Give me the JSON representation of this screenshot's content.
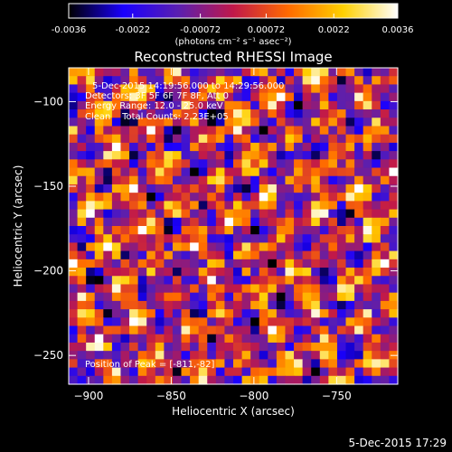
{
  "chart_data": {
    "type": "heatmap",
    "title": "Reconstructed RHESSI Image",
    "xlabel": "Heliocentric X (arcsec)",
    "ylabel": "Heliocentric Y (arcsec)",
    "xlim": [
      -912,
      -713
    ],
    "ylim": [
      -267,
      -80
    ],
    "x_ticks": [
      -900,
      -850,
      -800,
      -750
    ],
    "y_ticks": [
      -250,
      -200,
      -150,
      -100
    ],
    "grid": false,
    "colorbar": {
      "range": [
        -0.0036,
        0.0036
      ],
      "tick_values": [
        -0.0036,
        -0.0022,
        -0.00072,
        0.00072,
        0.0022,
        0.0036
      ],
      "tick_labels": [
        "-0.0036",
        "-0.0022",
        "-0.00072",
        "0.00072",
        "0.0022",
        "0.0036"
      ],
      "unit_label": "(photons cm⁻² s⁻¹ asec⁻²)",
      "colormap": [
        "#000000",
        "#1a00ff",
        "#5a1fb0",
        "#c0184a",
        "#ff6a00",
        "#ffd000",
        "#ffffff"
      ]
    },
    "grid_size": [
      38,
      38
    ],
    "annotations": {
      "time_range": "5-Dec-2015 14:19:56.000 to 14:29:56.000",
      "detectors": "Detectors: 3F 5F 6F 7F 8F, Att 0",
      "energy": "Energy Range: 12.0 - 25.0 keV",
      "clean": "Clean    Total Counts: 2.23E+05",
      "peak": "Position of Peak = [-811,-82]"
    }
  },
  "footer": {
    "timestamp": "5-Dec-2015 17:29"
  },
  "colors": {
    "background": "#000000",
    "text": "#ffffff"
  }
}
